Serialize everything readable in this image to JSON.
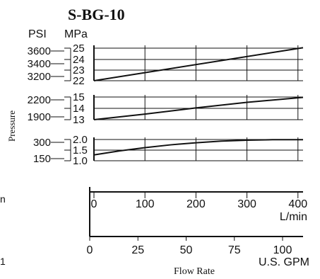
{
  "chart_data": {
    "title": "S-BG-10",
    "type": "line",
    "unit_headers": {
      "psi": "PSI",
      "mpa": "MPa"
    },
    "ylabel": "Pressure",
    "xlabel": "Flow Rate",
    "panels": [
      {
        "id": "p1",
        "psi_ticks": [
          "3600",
          "3400",
          "3200"
        ],
        "mpa_ticks": [
          "25",
          "24",
          "23",
          "22"
        ],
        "ylim_mpa": [
          22,
          25
        ],
        "series": {
          "x": [
            0,
            410
          ],
          "y_mpa": [
            22.0,
            24.8
          ]
        }
      },
      {
        "id": "p2",
        "psi_ticks": [
          "2200",
          "1900"
        ],
        "mpa_ticks": [
          "15",
          "14",
          "13"
        ],
        "ylim_mpa": [
          13,
          15
        ],
        "series": {
          "x": [
            0,
            100,
            200,
            300,
            410
          ],
          "y_mpa": [
            13.0,
            13.45,
            13.95,
            14.4,
            14.8
          ]
        }
      },
      {
        "id": "p3",
        "psi_ticks": [
          "300",
          "150"
        ],
        "mpa_ticks": [
          "2.0",
          "1.5",
          "1.0"
        ],
        "ylim_mpa": [
          1.0,
          2.0
        ],
        "series": {
          "x": [
            0,
            50,
            100,
            150,
            200,
            250,
            300,
            350,
            410
          ],
          "y_mpa": [
            1.25,
            1.42,
            1.56,
            1.68,
            1.77,
            1.84,
            1.88,
            1.9,
            1.9
          ]
        }
      }
    ],
    "x_axis_lmin": {
      "ticks": [
        "0",
        "100",
        "200",
        "300",
        "400"
      ],
      "unit": "L/min",
      "xlim": [
        0,
        410
      ]
    },
    "x_axis_gpm": {
      "ticks": [
        "0",
        "25",
        "50",
        "75",
        "100"
      ],
      "unit": "U.S. GPM"
    },
    "left_clipped_fragments": [
      "n",
      "1"
    ],
    "grid": true
  }
}
